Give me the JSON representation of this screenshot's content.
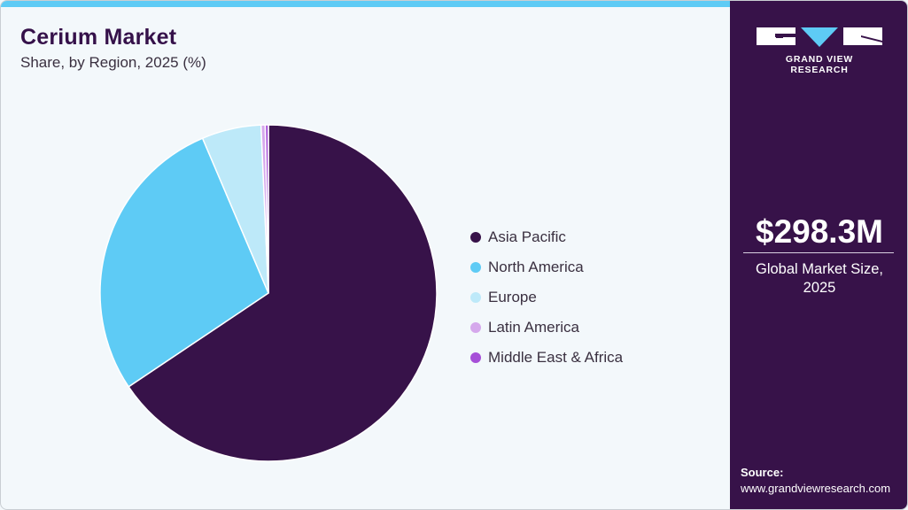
{
  "header": {
    "title": "Cerium Market",
    "subtitle": "Share, by Region, 2025 (%)"
  },
  "brand": {
    "name": "GRAND VIEW RESEARCH",
    "colors": {
      "primary": "#371249",
      "accent": "#5ecbf5"
    }
  },
  "kpi": {
    "value": "$298.3M",
    "label_line1": "Global Market Size,",
    "label_line2": "2025"
  },
  "source": {
    "label": "Source:",
    "url": "www.grandviewresearch.com"
  },
  "legend": {
    "items": [
      {
        "label": "Asia Pacific",
        "color": "#371249"
      },
      {
        "label": "North America",
        "color": "#5ecbf5"
      },
      {
        "label": "Europe",
        "color": "#bde9f9"
      },
      {
        "label": "Latin America",
        "color": "#d5a8ec"
      },
      {
        "label": "Middle East & Africa",
        "color": "#a64fd8"
      }
    ]
  },
  "chart_data": {
    "type": "pie",
    "title": "Cerium Market",
    "subtitle": "Share, by Region, 2025 (%)",
    "categories": [
      "Asia Pacific",
      "North America",
      "Europe",
      "Latin America",
      "Middle East & Africa"
    ],
    "values": [
      65.6,
      28.0,
      5.7,
      0.4,
      0.3
    ],
    "colors": [
      "#371249",
      "#5ecbf5",
      "#bde9f9",
      "#d5a8ec",
      "#a64fd8"
    ],
    "start_angle": "12 o'clock, clockwise",
    "legend_position": "right",
    "data_labels": false
  }
}
